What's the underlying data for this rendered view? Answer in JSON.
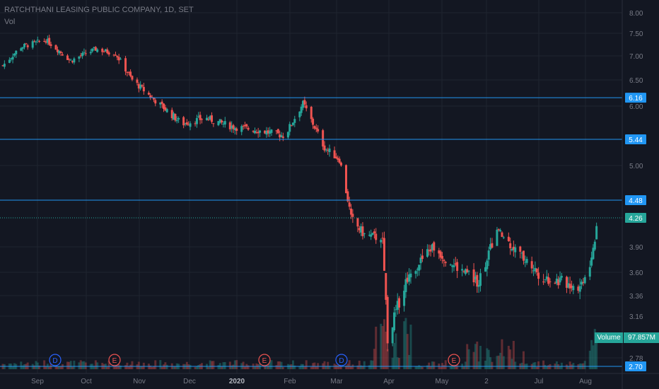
{
  "header": {
    "symbol_line": "RATCHTHANI LEASING PUBLIC COMPANY, 1D, SET",
    "indicator": "Vol"
  },
  "colors": {
    "background": "#131722",
    "grid": "#1f2430",
    "up": "#26a69a",
    "down": "#ef5350",
    "level_line": "#2196f3",
    "axis_text": "#787b86"
  },
  "volume_badge": {
    "label": "Volume",
    "value": "97.857M"
  },
  "chart_data": {
    "type": "candlestick",
    "y_axis_ticks": [
      "8.00",
      "7.50",
      "7.00",
      "6.50",
      "6.00",
      "5.00",
      "3.90",
      "3.60",
      "3.36",
      "3.16",
      "2.78"
    ],
    "y_axis_tick_values": [
      8.0,
      7.5,
      7.0,
      6.5,
      6.0,
      5.0,
      3.9,
      3.6,
      3.36,
      3.16,
      2.78
    ],
    "price_range": [
      2.7,
      8.05
    ],
    "x_axis_labels": [
      "Sep",
      "Oct",
      "Nov",
      "Dec",
      "2020",
      "Feb",
      "Mar",
      "Apr",
      "May",
      "2",
      "Jul",
      "Aug"
    ],
    "horizontal_levels": [
      {
        "value": 6.16,
        "label": "6.16",
        "style": "solid"
      },
      {
        "value": 5.44,
        "label": "5.44",
        "style": "solid"
      },
      {
        "value": 4.48,
        "label": "4.48",
        "style": "solid"
      },
      {
        "value": 4.26,
        "label": "4.26",
        "style": "dotted",
        "current_price": true
      },
      {
        "value": 2.7,
        "label": "2.70",
        "style": "solid"
      }
    ],
    "event_markers": [
      {
        "type": "D",
        "near": "Sep"
      },
      {
        "type": "E",
        "near": "Oct"
      },
      {
        "type": "E",
        "near": "2020"
      },
      {
        "type": "D",
        "near": "Mar"
      },
      {
        "type": "E",
        "near": "May"
      }
    ],
    "close_series": [
      {
        "date": "2019-08-15",
        "close": 6.8
      },
      {
        "date": "2019-08-26",
        "close": 7.2
      },
      {
        "date": "2019-09-10",
        "close": 7.35
      },
      {
        "date": "2019-09-25",
        "close": 6.9
      },
      {
        "date": "2019-10-10",
        "close": 7.15
      },
      {
        "date": "2019-10-22",
        "close": 7.05
      },
      {
        "date": "2019-11-01",
        "close": 6.5
      },
      {
        "date": "2019-11-15",
        "close": 6.1
      },
      {
        "date": "2019-12-01",
        "close": 5.7
      },
      {
        "date": "2019-12-15",
        "close": 5.8
      },
      {
        "date": "2020-01-01",
        "close": 5.65
      },
      {
        "date": "2020-01-15",
        "close": 5.6
      },
      {
        "date": "2020-02-01",
        "close": 5.5
      },
      {
        "date": "2020-02-12",
        "close": 6.05
      },
      {
        "date": "2020-02-25",
        "close": 5.3
      },
      {
        "date": "2020-03-05",
        "close": 5.1
      },
      {
        "date": "2020-03-12",
        "close": 4.25
      },
      {
        "date": "2020-03-20",
        "close": 4.05
      },
      {
        "date": "2020-03-31",
        "close": 4.0
      },
      {
        "date": "2020-04-03",
        "close": 2.95
      },
      {
        "date": "2020-04-15",
        "close": 3.55
      },
      {
        "date": "2020-04-30",
        "close": 3.9
      },
      {
        "date": "2020-05-15",
        "close": 3.65
      },
      {
        "date": "2020-05-28",
        "close": 3.5
      },
      {
        "date": "2020-06-08",
        "close": 4.1
      },
      {
        "date": "2020-06-20",
        "close": 3.85
      },
      {
        "date": "2020-07-05",
        "close": 3.55
      },
      {
        "date": "2020-07-18",
        "close": 3.5
      },
      {
        "date": "2020-07-28",
        "close": 3.45
      },
      {
        "date": "2020-08-04",
        "close": 3.75
      },
      {
        "date": "2020-08-08",
        "close": 4.26
      }
    ],
    "volume_shown": "97.857M"
  }
}
